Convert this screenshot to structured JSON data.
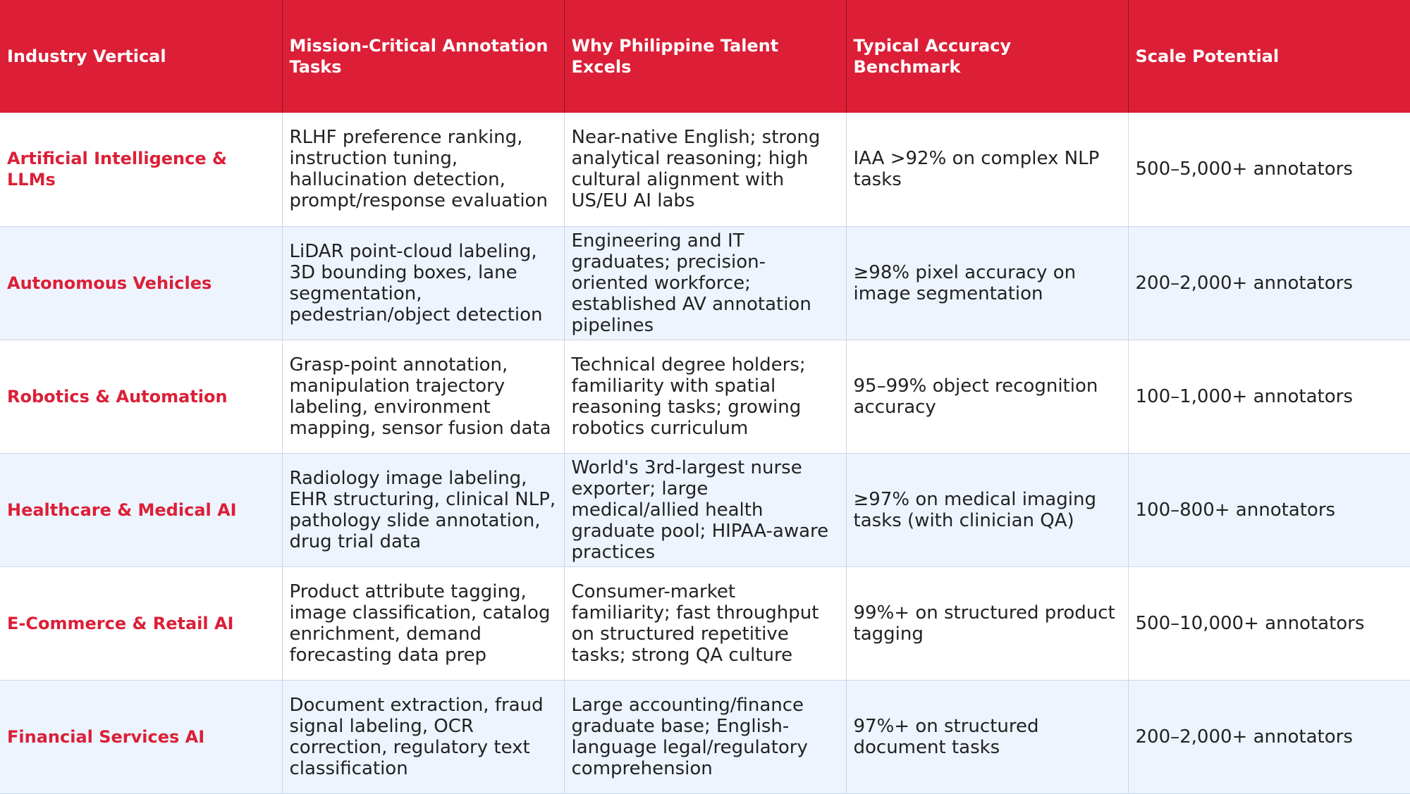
{
  "colors": {
    "header_bg": "#dc1f37",
    "header_text": "#ffffff",
    "accent_text": "#dc1f37",
    "alt_row_bg": "#edf4fe"
  },
  "headers": [
    "Industry Vertical",
    "Mission-Critical Annotation Tasks",
    "Why Philippine Talent Excels",
    "Typical Accuracy Benchmark",
    "Scale Potential"
  ],
  "rows": [
    {
      "vertical": "Artificial Intelligence & LLMs",
      "tasks": "RLHF preference ranking, instruction tuning, hallucination detection, prompt/response evaluation",
      "why": "Near-native English; strong analytical reasoning; high cultural alignment with US/EU AI labs",
      "accuracy": "IAA >92% on complex NLP tasks",
      "scale": "500–5,000+ annotators"
    },
    {
      "vertical": "Autonomous Vehicles",
      "tasks": "LiDAR point-cloud labeling, 3D bounding boxes, lane segmentation, pedestrian/object detection",
      "why": "Engineering and IT graduates; precision-oriented workforce; established AV annotation pipelines",
      "accuracy": "≥98% pixel accuracy on image segmentation",
      "scale": "200–2,000+ annotators"
    },
    {
      "vertical": "Robotics & Automation",
      "tasks": "Grasp-point annotation, manipulation trajectory labeling, environment mapping, sensor fusion data",
      "why": "Technical degree holders; familiarity with spatial reasoning tasks; growing robotics curriculum",
      "accuracy": "95–99% object recognition accuracy",
      "scale": "100–1,000+ annotators"
    },
    {
      "vertical": "Healthcare & Medical AI",
      "tasks": "Radiology image labeling, EHR structuring, clinical NLP, pathology slide annotation, drug trial data",
      "why": "World's 3rd-largest nurse exporter; large medical/allied health graduate pool; HIPAA-aware practices",
      "accuracy": "≥97% on medical imaging tasks (with clinician QA)",
      "scale": "100–800+ annotators"
    },
    {
      "vertical": "E-Commerce & Retail AI",
      "tasks": "Product attribute tagging, image classification, catalog enrichment, demand forecasting data prep",
      "why": "Consumer-market familiarity; fast throughput on structured repetitive tasks; strong QA culture",
      "accuracy": "99%+ on structured product tagging",
      "scale": "500–10,000+ annotators"
    },
    {
      "vertical": "Financial Services AI",
      "tasks": "Document extraction, fraud signal labeling, OCR correction, regulatory text classification",
      "why": "Large accounting/finance graduate base; English-language legal/regulatory comprehension",
      "accuracy": "97%+ on structured document tasks",
      "scale": "200–2,000+ annotators"
    }
  ]
}
